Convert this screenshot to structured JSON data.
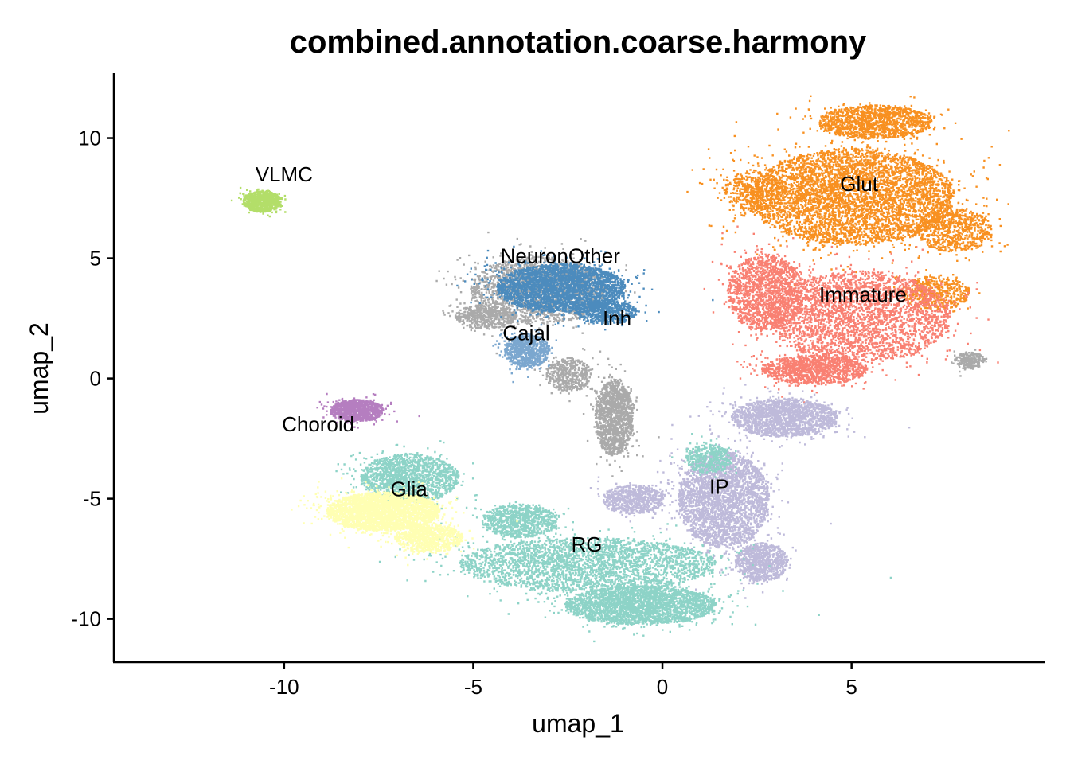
{
  "chart_data": {
    "type": "scatter",
    "title": "combined.annotation.coarse.harmony",
    "xlabel": "umap_1",
    "ylabel": "umap_2",
    "xlim": [
      -14.5,
      10.1
    ],
    "ylim": [
      -11.8,
      12.7
    ],
    "xticks": [
      -10,
      -5,
      0,
      5
    ],
    "xtick_labels": [
      "-10",
      "-5",
      "0",
      "5"
    ],
    "yticks": [
      -10,
      -5,
      0,
      5,
      10
    ],
    "ytick_labels": [
      "-10",
      "-5",
      "0",
      "5",
      "10"
    ],
    "grid": false,
    "legend": "none",
    "clusters": [
      {
        "name": "Glut",
        "color": "#f89020",
        "label_pos": [
          5.2,
          7.8
        ],
        "blobs": [
          [
            5.0,
            7.6,
            2.7,
            2.0,
            12000
          ],
          [
            5.6,
            10.7,
            1.5,
            0.7,
            1300
          ],
          [
            7.7,
            6.2,
            1.0,
            0.9,
            700
          ],
          [
            7.2,
            3.6,
            0.9,
            0.7,
            500
          ],
          [
            2.4,
            7.8,
            0.8,
            0.9,
            400
          ]
        ]
      },
      {
        "name": "Immature",
        "color": "#f98072",
        "label_pos": [
          5.3,
          3.2
        ],
        "blobs": [
          [
            5.2,
            2.6,
            2.4,
            1.9,
            9500
          ],
          [
            2.7,
            3.6,
            1.0,
            1.6,
            1500
          ],
          [
            4.0,
            0.4,
            1.4,
            0.6,
            1200
          ]
        ]
      },
      {
        "name": "IP",
        "color": "#bebada",
        "label_pos": [
          1.5,
          -4.8
        ],
        "blobs": [
          [
            1.6,
            -5.0,
            1.2,
            2.0,
            3500
          ],
          [
            3.2,
            -1.6,
            1.4,
            0.8,
            1800
          ],
          [
            2.6,
            -7.6,
            0.7,
            0.8,
            900
          ],
          [
            -0.8,
            -5.0,
            0.8,
            0.6,
            700
          ]
        ]
      },
      {
        "name": "RG",
        "color": "#8dd3c7",
        "label_pos": [
          -2.0,
          -7.2
        ],
        "blobs": [
          [
            -2.0,
            -7.7,
            3.4,
            1.1,
            10000
          ],
          [
            -0.6,
            -9.4,
            2.0,
            0.8,
            2800
          ],
          [
            -6.7,
            -4.1,
            1.3,
            1.0,
            1600
          ],
          [
            -3.8,
            -5.9,
            1.0,
            0.7,
            900
          ],
          [
            1.2,
            -3.3,
            0.6,
            0.6,
            400
          ]
        ]
      },
      {
        "name": "Glia",
        "color": "#ffffb3",
        "label_pos": [
          -6.7,
          -4.9
        ],
        "blobs": [
          [
            -7.4,
            -5.5,
            1.5,
            0.8,
            3000
          ],
          [
            -6.2,
            -6.6,
            0.9,
            0.6,
            900
          ]
        ]
      },
      {
        "name": "Choroid",
        "color": "#b57ec0",
        "label_pos": [
          -9.1,
          -2.2
        ],
        "blobs": [
          [
            -8.1,
            -1.3,
            0.7,
            0.45,
            1100
          ]
        ]
      },
      {
        "name": "VLMC",
        "color": "#b3de69",
        "label_pos": [
          -10.0,
          8.2
        ],
        "blobs": [
          [
            -10.6,
            7.4,
            0.5,
            0.45,
            800
          ]
        ]
      },
      {
        "name": "NeuronOther",
        "color": "#aaaaaa",
        "label_pos": [
          -2.7,
          4.8
        ],
        "blobs": [
          [
            -3.3,
            3.7,
            1.8,
            1.4,
            2000
          ],
          [
            -1.3,
            -1.6,
            0.5,
            1.6,
            1400
          ],
          [
            -4.7,
            2.6,
            0.8,
            0.5,
            500
          ],
          [
            8.1,
            0.8,
            0.4,
            0.35,
            250
          ],
          [
            -2.5,
            0.2,
            0.6,
            0.7,
            500
          ]
        ]
      },
      {
        "name": "Inh",
        "color": "#4c8bbd",
        "label_pos": [
          -1.2,
          2.2
        ],
        "blobs": [
          [
            -2.7,
            3.8,
            1.7,
            1.0,
            4500
          ],
          [
            -1.5,
            2.8,
            0.8,
            0.5,
            600
          ]
        ]
      },
      {
        "name": "Cajal",
        "color": "#7ba7cf",
        "label_pos": [
          -3.6,
          1.6
        ],
        "blobs": [
          [
            -3.6,
            1.2,
            0.6,
            0.7,
            800
          ]
        ]
      }
    ]
  }
}
